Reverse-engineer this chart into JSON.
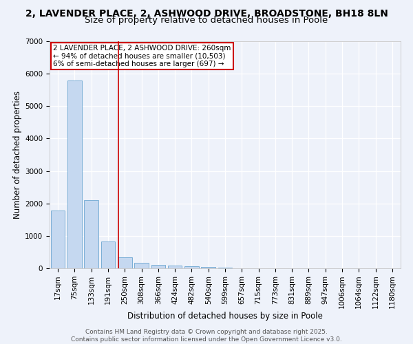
{
  "title1": "2, LAVENDER PLACE, 2, ASHWOOD DRIVE, BROADSTONE, BH18 8LN",
  "title2": "Size of property relative to detached houses in Poole",
  "xlabel": "Distribution of detached houses by size in Poole",
  "ylabel": "Number of detached properties",
  "bar_color": "#c5d8f0",
  "bar_edge_color": "#7aaed6",
  "background_color": "#eef2fa",
  "grid_color": "#ffffff",
  "annotation_text": "2 LAVENDER PLACE, 2 ASHWOOD DRIVE: 260sqm\n← 94% of detached houses are smaller (10,503)\n6% of semi-detached houses are larger (697) →",
  "annotation_box_color": "#ffffff",
  "annotation_edge_color": "#cc0000",
  "redline_x": 3.6,
  "redline_color": "#cc0000",
  "categories": [
    "17sqm",
    "75sqm",
    "133sqm",
    "191sqm",
    "250sqm",
    "308sqm",
    "366sqm",
    "424sqm",
    "482sqm",
    "540sqm",
    "599sqm",
    "657sqm",
    "715sqm",
    "773sqm",
    "831sqm",
    "889sqm",
    "947sqm",
    "1006sqm",
    "1064sqm",
    "1122sqm",
    "1180sqm"
  ],
  "values": [
    1780,
    5800,
    2090,
    820,
    350,
    175,
    110,
    75,
    55,
    35,
    20,
    8,
    5,
    3,
    2,
    2,
    2,
    2,
    2,
    1,
    1
  ],
  "ylim": [
    0,
    7000
  ],
  "yticks": [
    0,
    1000,
    2000,
    3000,
    4000,
    5000,
    6000,
    7000
  ],
  "footnote": "Contains HM Land Registry data © Crown copyright and database right 2025.\nContains public sector information licensed under the Open Government Licence v3.0.",
  "title_fontsize": 10,
  "title2_fontsize": 9.5,
  "axis_label_fontsize": 8.5,
  "tick_fontsize": 7.5,
  "footnote_fontsize": 6.5,
  "annotation_fontsize": 7.5
}
